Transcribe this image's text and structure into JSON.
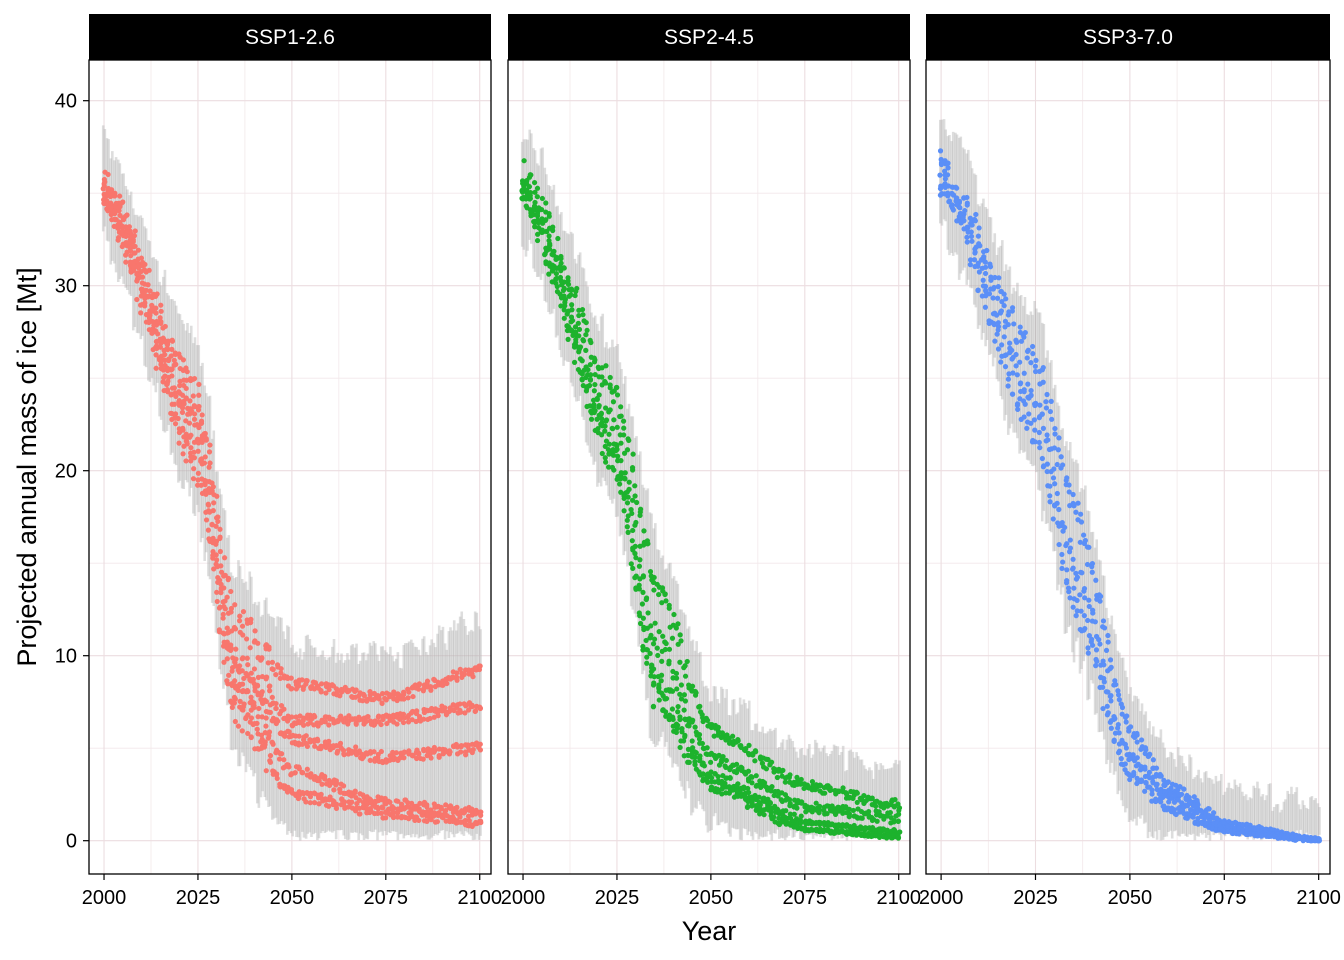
{
  "chart_data": {
    "type": "scatter",
    "xlabel": "Year",
    "ylabel": "Projected annual mass of ice [Mt]",
    "xlim": [
      1996,
      2103
    ],
    "ylim": [
      -1.8,
      42.2
    ],
    "x_ticks": [
      2000,
      2025,
      2050,
      2075,
      2100
    ],
    "x_tick_labels": [
      "2000",
      "2025",
      "2050",
      "2075",
      "2100"
    ],
    "y_ticks": [
      0,
      10,
      20,
      30,
      40
    ],
    "y_tick_labels": [
      "0",
      "10",
      "20",
      "30",
      "40"
    ],
    "grid": true,
    "legend": "none",
    "background_band": {
      "description": "grey vertical range bars per year",
      "color": "#b3b3b3"
    },
    "panels": [
      {
        "name": "SSP1-2.6",
        "color": "#F8766D",
        "x_range": [
          2000,
          2100
        ],
        "band_low_start": 32.5,
        "band_high_start": 38.5,
        "band_low_end": 0.8,
        "band_high_end": 12.0,
        "series_end_values": [
          9.2,
          7.3,
          6.9,
          6.1,
          5.8,
          5.0,
          4.3,
          2.4,
          1.6,
          1.3,
          1.1,
          0.9
        ],
        "series_start_value": 35.3,
        "series_midpoint_year": 2033,
        "curves": [
          {
            "years": [
              2000,
              2025,
              2035,
              2050,
              2075,
              2100
            ],
            "values": [
              35.5,
              24,
              12,
              8.5,
              7.7,
              9.2
            ]
          },
          {
            "years": [
              2000,
              2025,
              2035,
              2050,
              2075,
              2100
            ],
            "values": [
              35.2,
              23,
              10,
              6.5,
              6.5,
              7.3
            ]
          },
          {
            "years": [
              2000,
              2025,
              2035,
              2050,
              2075,
              2100
            ],
            "values": [
              35.0,
              22,
              9,
              5.5,
              4.5,
              5.0
            ]
          },
          {
            "years": [
              2000,
              2025,
              2035,
              2050,
              2075,
              2100
            ],
            "values": [
              35.0,
              21,
              8,
              3.8,
              2.0,
              1.5
            ]
          },
          {
            "years": [
              2000,
              2025,
              2035,
              2050,
              2075,
              2100
            ],
            "values": [
              34.8,
              20,
              7,
              2.5,
              1.5,
              1.0
            ]
          }
        ]
      },
      {
        "name": "SSP2-4.5",
        "color": "#1DB22D",
        "x_range": [
          2000,
          2100
        ],
        "curves": [
          {
            "years": [
              2000,
              2025,
              2035,
              2050,
              2075,
              2100
            ],
            "values": [
              36.0,
              24,
              14,
              6.0,
              3.0,
              1.9
            ]
          },
          {
            "years": [
              2000,
              2025,
              2035,
              2050,
              2075,
              2100
            ],
            "values": [
              35.5,
              22,
              11,
              4.5,
              1.8,
              1.2
            ]
          },
          {
            "years": [
              2000,
              2025,
              2035,
              2050,
              2075,
              2100
            ],
            "values": [
              35.0,
              21,
              9,
              3.5,
              1.0,
              0.5
            ]
          },
          {
            "years": [
              2000,
              2025,
              2035,
              2050,
              2075,
              2100
            ],
            "values": [
              34.8,
              20,
              8,
              3.0,
              0.6,
              0.2
            ]
          }
        ]
      },
      {
        "name": "SSP3-7.0",
        "color": "#5B8FF7",
        "x_range": [
          2000,
          2100
        ],
        "curves": [
          {
            "years": [
              2000,
              2025,
              2035,
              2050,
              2060,
              2075,
              2100
            ],
            "values": [
              36.5,
              26,
              18,
              6.0,
              3.0,
              1.0,
              0.05
            ]
          },
          {
            "years": [
              2000,
              2025,
              2035,
              2050,
              2060,
              2075,
              2100
            ],
            "values": [
              36.0,
              24,
              15,
              4.5,
              2.5,
              0.7,
              0.02
            ]
          },
          {
            "years": [
              2000,
              2025,
              2035,
              2050,
              2060,
              2075,
              2100
            ],
            "values": [
              35.5,
              22,
              13,
              3.5,
              1.8,
              0.5,
              0.01
            ]
          }
        ]
      }
    ]
  }
}
